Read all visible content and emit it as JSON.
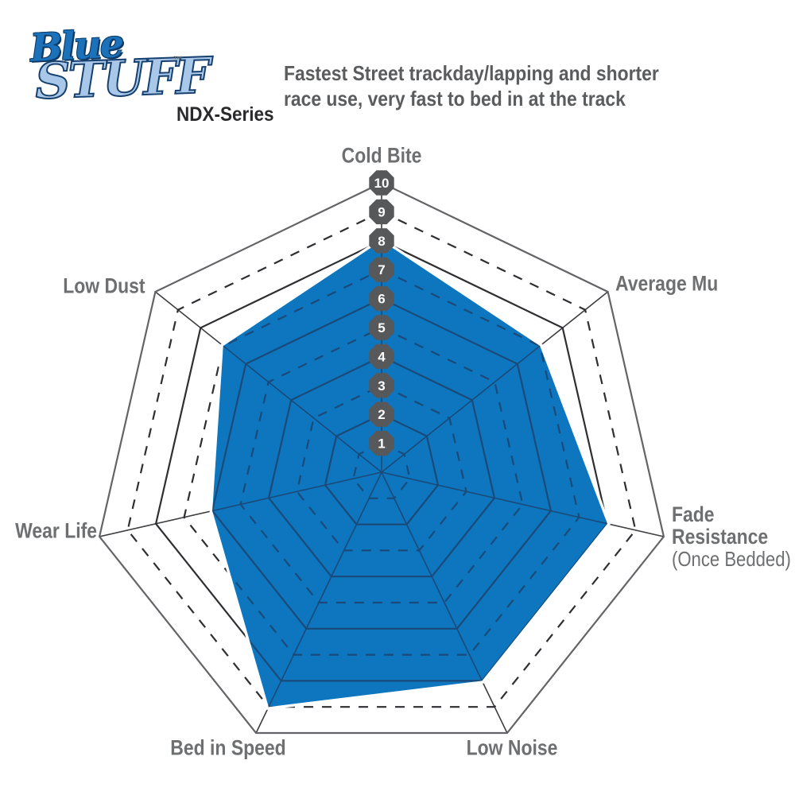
{
  "header": {
    "logo_word1": "Blue",
    "logo_word2": "STUFF",
    "logo_tm": "™",
    "series": "NDX-Series",
    "tagline": "Fastest Street trackday/lapping and shorter\nrace use, very fast to bed in at the track"
  },
  "axis_labels": {
    "cold_bite": "Cold Bite",
    "average_mu": "Average Mu",
    "fade_1": "Fade",
    "fade_2": "Resistance",
    "fade_3": "(Once Bedded)",
    "low_noise": "Low Noise",
    "bed_in_speed": "Bed in Speed",
    "wear_life": "Wear Life",
    "low_dust": "Low Dust"
  },
  "chart_data": {
    "type": "radar",
    "categories": [
      "Cold Bite",
      "Average Mu",
      "Fade Resistance (Once Bedded)",
      "Low Noise",
      "Bed in Speed",
      "Wear Life",
      "Low Dust"
    ],
    "values": [
      8,
      7,
      8,
      8,
      9,
      6,
      7
    ],
    "scale_min": 0,
    "scale_max": 10,
    "scale_ticks": [
      "1",
      "2",
      "3",
      "4",
      "5",
      "6",
      "7",
      "8",
      "9",
      "10"
    ],
    "grid_sides": 7,
    "grid_style": {
      "even_rings": "solid",
      "odd_rings": "dashed",
      "outer_ring": "solid-gray"
    },
    "legend": "none",
    "colors": {
      "fill": "#0d76be",
      "grid": "#2e2f32",
      "grid_outer": "#636467",
      "grid_inside_fill": "#1a4a79",
      "badge": "#57585a",
      "badge_text": "#ffffff",
      "label_text": "#6e6f71"
    }
  }
}
